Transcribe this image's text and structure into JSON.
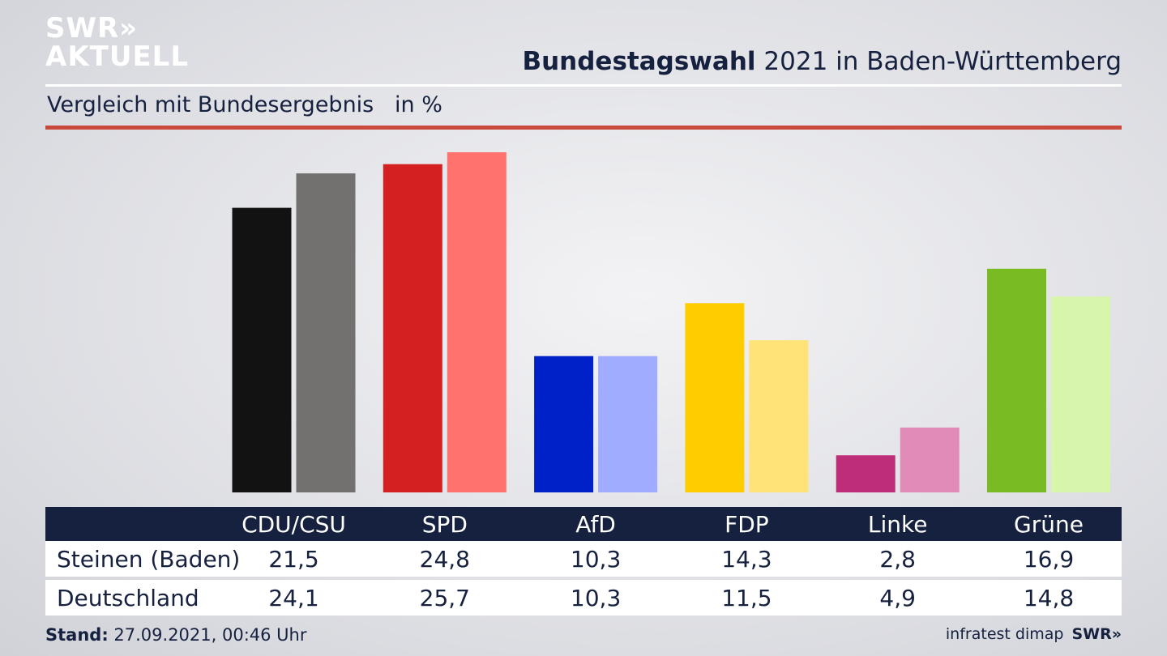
{
  "logo": {
    "line1": "SWR»",
    "line2": "AKTUELL"
  },
  "header": {
    "title_bold": "Bundestagswahl",
    "title_rest": " 2021 in Baden-Württemberg",
    "subtitle": "Vergleich mit Bundesergebnis   in %"
  },
  "chart_data": {
    "type": "bar",
    "title": "Bundestagswahl 2021 in Baden-Württemberg",
    "subtitle": "Vergleich mit Bundesergebnis in %",
    "categories": [
      "CDU/CSU",
      "SPD",
      "AfD",
      "FDP",
      "Linke",
      "Grüne"
    ],
    "series": [
      {
        "name": "Steinen (Baden)",
        "values": [
          21.5,
          24.8,
          10.3,
          14.3,
          2.8,
          16.9
        ]
      },
      {
        "name": "Deutschland",
        "values": [
          24.1,
          25.7,
          10.3,
          11.5,
          4.9,
          14.8
        ]
      }
    ],
    "ylim": [
      0,
      25.7
    ],
    "grid": false,
    "colors": {
      "primary": [
        "#121212",
        "#d42020",
        "#0020c8",
        "#ffcc00",
        "#be2e78",
        "#78bb22"
      ],
      "secondary": [
        "#727170",
        "#ff726d",
        "#a0acff",
        "#ffe278",
        "#e08bb8",
        "#d8f5ac"
      ]
    }
  },
  "table": {
    "header": [
      "CDU/CSU",
      "SPD",
      "AfD",
      "FDP",
      "Linke",
      "Grüne"
    ],
    "rows": [
      {
        "label": "Steinen (Baden)",
        "cells": [
          "21,5",
          "24,8",
          "10,3",
          "14,3",
          "2,8",
          "16,9"
        ]
      },
      {
        "label": "Deutschland",
        "cells": [
          "24,1",
          "25,7",
          "10,3",
          "11,5",
          "4,9",
          "14,8"
        ]
      }
    ]
  },
  "footer": {
    "stand_label": "Stand:",
    "stand_value": " 27.09.2021, 00:46 Uhr",
    "source": "infratest dimap",
    "brand": "SWR»"
  }
}
